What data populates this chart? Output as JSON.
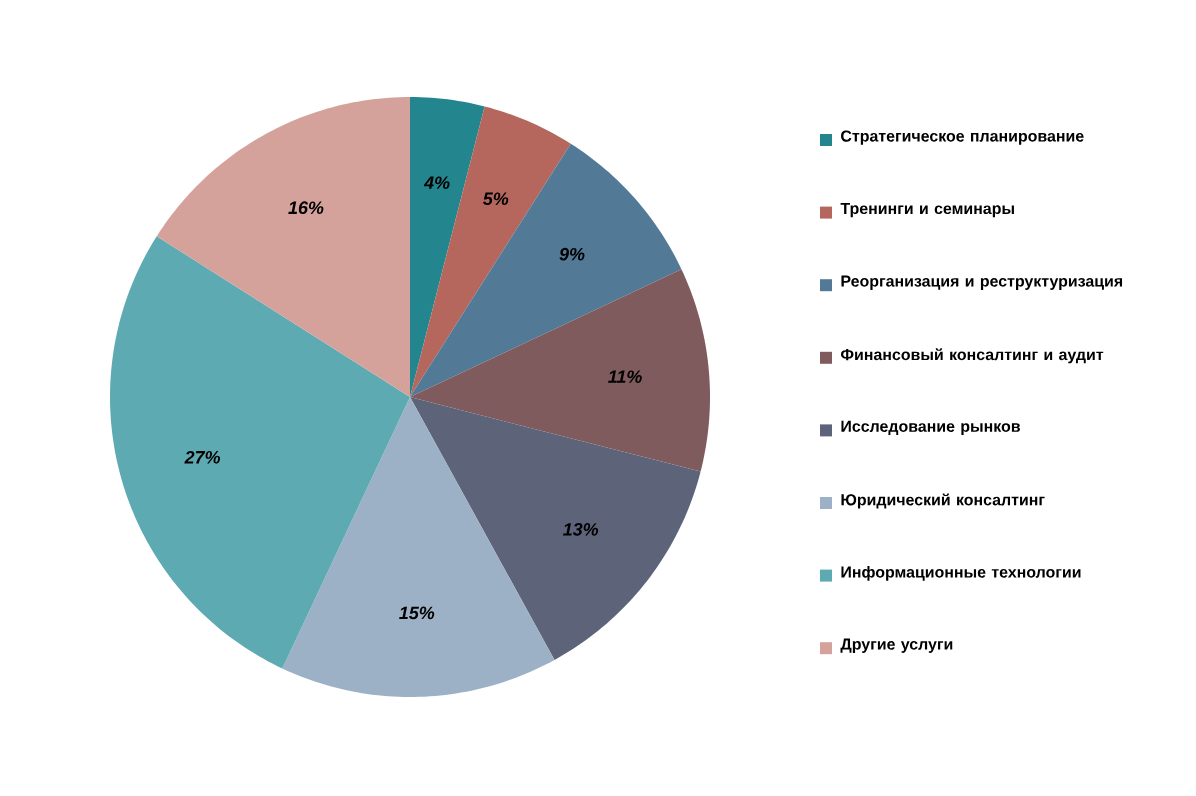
{
  "chart_data": {
    "type": "pie",
    "categories": [
      "Стратегическое планирование",
      "Тренинги и семинары",
      "Реорганизация и реструктуризация",
      "Финансовый консалтинг и аудит",
      "Исследование рынков",
      "Юридический консалтинг",
      "Информационные технологии",
      "Другие услуги"
    ],
    "values": [
      4,
      5,
      9,
      11,
      13,
      15,
      27,
      16
    ],
    "value_labels": [
      "4%",
      "5%",
      "9%",
      "11%",
      "13%",
      "15%",
      "27%",
      "16%"
    ],
    "colors": [
      "#23868e",
      "#b5675d",
      "#527a96",
      "#7f5b5e",
      "#5d6379",
      "#9cb1c5",
      "#5eaab3",
      "#d4a29b"
    ],
    "legend": "right"
  }
}
